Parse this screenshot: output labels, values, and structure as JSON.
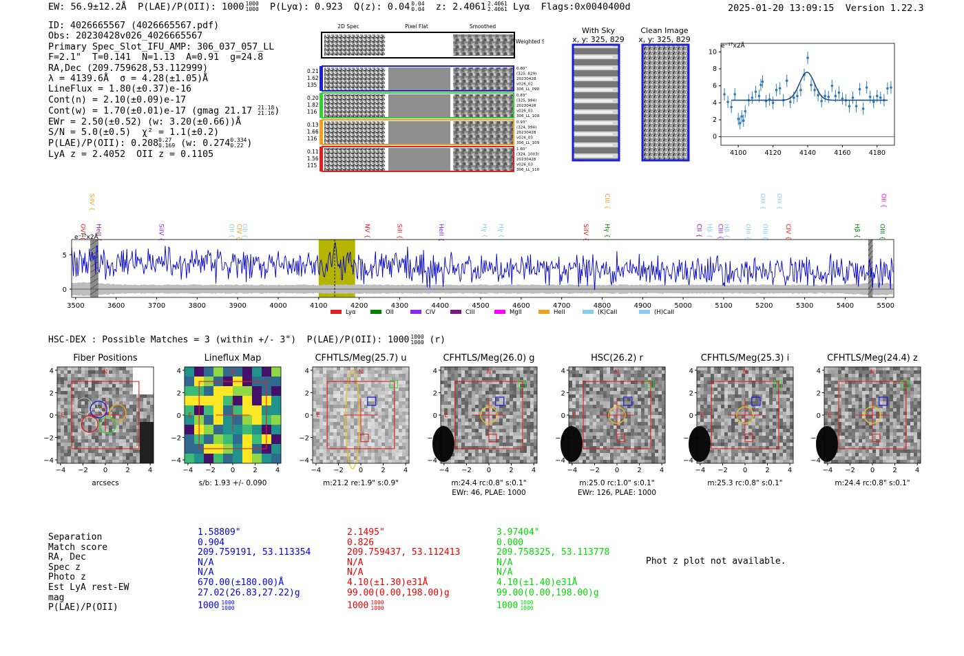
{
  "header": {
    "ew": "EW: 56.9±12.2Å",
    "plae": "P(LAE)/P(OII): 1000",
    "plae_hi": "1000",
    "plae_lo": "1000",
    "plya": "P(Lyα): 0.923",
    "qz": "Q(z): 0.04",
    "qz_hi": "0.04",
    "qz_lo": "0.04",
    "z": "z: 2.4061",
    "z_hi": "2.4061",
    "z_lo": "2.4061",
    "line": "Lyα",
    "flags": "Flags:0x0040400d",
    "timestamp": "2025-01-20 13:09:15",
    "version": "Version 1.22.3"
  },
  "info": {
    "id": "ID: 4026665567 (4026665567.pdf)",
    "obs": "Obs: 20230428v026_4026665567",
    "primary": "Primary Spec_Slot_IFU_AMP: 306_037_057_LL",
    "params": "F=2.1\"  T=0.141  N=1.13  A=0.91  g=24.8",
    "radec": "RA,Dec (209.759628,53.112999)",
    "lambda": "λ = 4139.6Å  σ = 4.28(±1.05)Å",
    "lineflux": "LineFlux = 1.80(±0.37)e-16",
    "contn": "Cont(n) = 2.10(±0.09)e-17",
    "contw": "Cont(w) = 1.70(±0.01)e-17 (gmag 21.17",
    "contw_hi": "21.18",
    "contw_lo": "21.16",
    "ewr": "EWr = 2.50(±0.52) (w: 3.20(±0.66))Å",
    "sn": "S/N = 5.0(±0.5)  χ² = 1.1(±0.2)",
    "plae": "P(LAE)/P(OII): 0.208",
    "plae_hi": "0.27",
    "plae_lo": "0.169",
    "plae_w": "(w: 0.274",
    "plae_w_hi": "0.334",
    "plae_w_lo": "0.22",
    "lyaz": "LyA z = 2.4052  OII z = 0.1105"
  },
  "cutouts": {
    "headers": [
      "2D Spec",
      "Pixel Flat",
      "Smoothed"
    ],
    "weighted": "Weighted Sum",
    "rows": [
      {
        "left": [
          "0.21",
          "1.62",
          "135"
        ],
        "right": [
          "0.80\"",
          "(325, 829)",
          "20230428",
          "v026_02",
          "306_LL_090"
        ],
        "color": "#1f1fd6"
      },
      {
        "left": [
          "0.20",
          "1.82",
          "116"
        ],
        "right": [
          "0.83\"",
          "(325, 994)",
          "20230428",
          "v026_01",
          "306_LL_109"
        ],
        "color": "#2fd02f"
      },
      {
        "left": [
          "0.13",
          "1.66",
          "116"
        ],
        "right": [
          "0.93\"",
          "(324, 994)",
          "20230428",
          "v026_03",
          "306_LL_109"
        ],
        "color": "#f0a020"
      },
      {
        "left": [
          "0.11",
          "1.56",
          "115"
        ],
        "right": [
          "1.60\"",
          "(324, 1003)",
          "20230428",
          "v026_03",
          "306_LL_110"
        ],
        "color": "#e02020"
      }
    ],
    "with_sky": "With Sky",
    "with_sky_xy": "x, y: 325, 829",
    "clean": "Clean Image",
    "clean_xy": "x, y: 325, 829"
  },
  "chart_data": [
    {
      "type": "line",
      "name": "line-fit",
      "ylabel_unit": "e⁻¹⁷x2Å",
      "xlim": [
        4090,
        4190
      ],
      "ylim": [
        -1,
        11
      ],
      "xticks": [
        4100,
        4120,
        4140,
        4160,
        4180
      ],
      "yticks": [
        0,
        2,
        4,
        6,
        8,
        10
      ],
      "fit": {
        "continuum": 4.3,
        "center": 4139.6,
        "sigma": 4.28,
        "peak": 7.6
      },
      "points": [
        [
          4092,
          5.0
        ],
        [
          4094,
          4.1
        ],
        [
          4096,
          3.5
        ],
        [
          4098,
          5.0
        ],
        [
          4100,
          2.1
        ],
        [
          4101,
          1.6
        ],
        [
          4102,
          2.4
        ],
        [
          4103,
          1.9
        ],
        [
          4104,
          3.0
        ],
        [
          4106,
          4.3
        ],
        [
          4108,
          4.6
        ],
        [
          4110,
          5.3
        ],
        [
          4112,
          4.8
        ],
        [
          4113,
          6.1
        ],
        [
          4114,
          6.5
        ],
        [
          4116,
          4.2
        ],
        [
          4118,
          4.4
        ],
        [
          4120,
          4.0
        ],
        [
          4122,
          5.5
        ],
        [
          4124,
          5.7
        ],
        [
          4126,
          4.3
        ],
        [
          4128,
          6.6
        ],
        [
          4130,
          4.1
        ],
        [
          4132,
          4.6
        ],
        [
          4134,
          4.8
        ],
        [
          4136,
          5.5
        ],
        [
          4138,
          7.3
        ],
        [
          4140,
          9.3
        ],
        [
          4142,
          6.1
        ],
        [
          4144,
          5.5
        ],
        [
          4146,
          4.9
        ],
        [
          4148,
          4.2
        ],
        [
          4150,
          4.8
        ],
        [
          4152,
          4.7
        ],
        [
          4154,
          6.0
        ],
        [
          4156,
          4.8
        ],
        [
          4158,
          5.2
        ],
        [
          4160,
          4.5
        ],
        [
          4162,
          4.3
        ],
        [
          4164,
          3.6
        ],
        [
          4166,
          4.6
        ],
        [
          4168,
          3.6
        ],
        [
          4170,
          5.6
        ],
        [
          4172,
          3.3
        ],
        [
          4174,
          5.8
        ],
        [
          4176,
          4.7
        ],
        [
          4178,
          4.1
        ],
        [
          4180,
          4.8
        ],
        [
          4182,
          4.6
        ],
        [
          4184,
          4.3
        ],
        [
          4186,
          5.7
        ],
        [
          4188,
          5.8
        ]
      ]
    },
    {
      "type": "line",
      "name": "full-spectrum",
      "ylabel_unit": "e⁻¹⁷x2Å",
      "xlim": [
        3490,
        5520
      ],
      "ylim": [
        -1.2,
        7.2
      ],
      "xticks": [
        3500,
        3600,
        3700,
        3800,
        3900,
        4000,
        4100,
        4200,
        4300,
        4400,
        4500,
        4600,
        4700,
        4800,
        4900,
        5000,
        5100,
        5200,
        5300,
        5400,
        5500
      ],
      "yticks": [
        0,
        5
      ],
      "highlight": [
        4100,
        4190
      ],
      "marker": 4139.6,
      "masked": [
        [
          3536,
          3556
        ],
        [
          5457,
          5468
        ]
      ],
      "lines": [
        {
          "label": "SiIV",
          "x": 3540,
          "tier": 0,
          "color": "#f0a020"
        },
        {
          "label": "OVI",
          "x": 3518,
          "tier": 1,
          "color": "#e02020"
        },
        {
          "label": "HeII",
          "x": 3557,
          "tier": 1,
          "color": "#7a1a7a"
        },
        {
          "label": "SiIV",
          "x": 3712,
          "tier": 1,
          "color": "#8a2be2"
        },
        {
          "label": "OII",
          "x": 3885,
          "tier": 1,
          "color": "#87ceeb"
        },
        {
          "label": "CIV",
          "x": 3904,
          "tier": 1,
          "color": "#f0a020"
        },
        {
          "label": "OII",
          "x": 3918,
          "tier": 1,
          "color": "#87ceeb"
        },
        {
          "label": "NV",
          "x": 4220,
          "tier": 1,
          "color": "#e02020"
        },
        {
          "label": "SiII",
          "x": 4300,
          "tier": 1,
          "color": "#e02020"
        },
        {
          "label": "HeII",
          "x": 4403,
          "tier": 1,
          "color": "#8a2be2"
        },
        {
          "label": "Hγ",
          "x": 4510,
          "tier": 1,
          "color": "#87ceeb"
        },
        {
          "label": "Hγ",
          "x": 4551,
          "tier": 1,
          "color": "#87ceeb"
        },
        {
          "label": "SiIV",
          "x": 4760,
          "tier": 1,
          "color": "#e02020"
        },
        {
          "label": "CIII",
          "x": 4813,
          "tier": 0,
          "color": "#f0a020"
        },
        {
          "label": "Hγ",
          "x": 4813,
          "tier": 1,
          "color": "#008000"
        },
        {
          "label": "CII",
          "x": 5040,
          "tier": 1,
          "color": "#7a1a7a"
        },
        {
          "label": "Hβ",
          "x": 5065,
          "tier": 1,
          "color": "#87ceeb"
        },
        {
          "label": "CIII",
          "x": 5092,
          "tier": 1,
          "color": "#8a2be2"
        },
        {
          "label": "Hβ",
          "x": 5108,
          "tier": 1,
          "color": "#87ceeb"
        },
        {
          "label": "OIII",
          "x": 5160,
          "tier": 1,
          "color": "#87ceeb"
        },
        {
          "label": "OIII",
          "x": 5197,
          "tier": 0,
          "color": "#87ceeb"
        },
        {
          "label": "OIII",
          "x": 5203,
          "tier": 1,
          "color": "#87ceeb"
        },
        {
          "label": "OIII",
          "x": 5238,
          "tier": 0,
          "color": "#87ceeb"
        },
        {
          "label": "CIV",
          "x": 5260,
          "tier": 1,
          "color": "#e02020"
        },
        {
          "label": "Hβ",
          "x": 5430,
          "tier": 1,
          "color": "#008000"
        },
        {
          "label": "OII",
          "x": 5495,
          "tier": 0,
          "color": "#ff00ff"
        },
        {
          "label": "OIII",
          "x": 5492,
          "tier": 1,
          "color": "#008000"
        }
      ],
      "legend": [
        {
          "label": "Lyα",
          "color": "#e02020"
        },
        {
          "label": "OII",
          "color": "#008000"
        },
        {
          "label": "CIV",
          "color": "#8a2be2"
        },
        {
          "label": "CIII",
          "color": "#7a1a7a"
        },
        {
          "label": "MgII",
          "color": "#ff00ff"
        },
        {
          "label": "HeII",
          "color": "#f0a020"
        },
        {
          "label": "(K)CaII",
          "color": "#87ceeb"
        },
        {
          "label": "(H)CaII",
          "color": "#87ceeb"
        }
      ]
    }
  ],
  "hsc": {
    "title": "HSC-DEX : Possible Matches = 3 (within +/- 3\")  P(LAE)/P(OII): 1000",
    "title_hi": "1000",
    "title_lo": "1000",
    "title_tail": "(r)",
    "tick_labels": [
      "−4",
      "−2",
      "0",
      "2",
      "4"
    ],
    "panels": [
      {
        "title": "Fiber Positions",
        "sub1": "arcsecs",
        "sub2": ""
      },
      {
        "title": "Lineflux Map",
        "sub1": "s/b: 1.93 +/- 0.090",
        "sub2": ""
      },
      {
        "title": "CFHTLS/Meg(25.7) u",
        "sub1": "m:21.2  re:1.9\"  s:0.9\"",
        "sub2": ""
      },
      {
        "title": "CFHTLS/Meg(26.0) g",
        "sub1": "m:24.4 rc:0.8\"  s:0.1\"",
        "sub2": "EWr: 46, PLAE: 1000"
      },
      {
        "title": "HSC(26.2) r",
        "sub1": "m:25.0 rc:1.0\"  s:0.1\"",
        "sub2": "EWr: 126, PLAE: 1000"
      },
      {
        "title": "CFHTLS/Meg(25.3) i",
        "sub1": "m:25.3 rc:0.8\"  s:0.1\"",
        "sub2": ""
      },
      {
        "title": "CFHTLS/Meg(24.4) z",
        "sub1": "m:24.4 rc:0.8\"  s:0.1\"",
        "sub2": ""
      }
    ],
    "n_label": "N",
    "e_label": "E"
  },
  "table": {
    "labels": [
      "Separation",
      "Match score",
      "RA, Dec",
      "Spec z",
      "Photo z",
      "Est LyA rest-EW",
      "mag",
      "P(LAE)/P(OII)"
    ],
    "columns": [
      {
        "color": "#0000ee",
        "values": [
          "1.58809\"",
          "0.904",
          "209.759191, 53.113354",
          "N/A",
          "N/A",
          "670.00(±180.00)Å",
          "27.02(26.83,27.22)g",
          "1000"
        ],
        "plae_hi": "1000",
        "plae_lo": "1000"
      },
      {
        "color": "#ee0000",
        "values": [
          "2.1495\"",
          "0.826",
          "209.759437, 53.112413",
          "N/A",
          "N/A",
          "4.10(±1.30)e31Å",
          "99.00(0.00,198.00)g",
          "1000"
        ],
        "plae_hi": "1000",
        "plae_lo": "1000"
      },
      {
        "color": "#00dd00",
        "values": [
          "3.97404\"",
          "0.000",
          "209.758325, 53.113778",
          "N/A",
          "N/A",
          "4.10(±1.40)e31Å",
          "99.00(0.00,198.00)g",
          "1000"
        ],
        "plae_hi": "1000",
        "plae_lo": "1000"
      }
    ],
    "phot_z": "Phot z plot not available."
  }
}
